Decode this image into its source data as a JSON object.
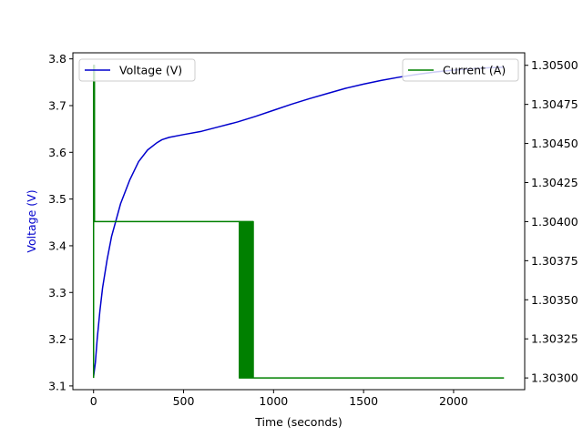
{
  "chart_data": {
    "type": "line",
    "title": "",
    "xlabel": "Time (seconds)",
    "ylabel": "Voltage (V)",
    "ylabel_right": "",
    "xlim": [
      -115,
      2395
    ],
    "ylim": [
      3.092,
      3.813
    ],
    "ylim_right": [
      1.302925,
      1.30508
    ],
    "x_ticks": [
      0,
      500,
      1000,
      1500,
      2000
    ],
    "x_tick_labels": [
      "0",
      "500",
      "1000",
      "1500",
      "2000"
    ],
    "y_ticks": [
      3.1,
      3.2,
      3.3,
      3.4,
      3.5,
      3.6,
      3.7,
      3.8
    ],
    "y_tick_labels": [
      "3.1",
      "3.2",
      "3.3",
      "3.4",
      "3.5",
      "3.6",
      "3.7",
      "3.8"
    ],
    "y_ticks_right": [
      1.303,
      1.30325,
      1.3035,
      1.30375,
      1.304,
      1.30425,
      1.3045,
      1.30475,
      1.305
    ],
    "y_tick_labels_right": [
      "1.30300",
      "1.30325",
      "1.30350",
      "1.30375",
      "1.30400",
      "1.30425",
      "1.30450",
      "1.30475",
      "1.30500"
    ],
    "grid": false,
    "series": [
      {
        "name": "Voltage (V)",
        "axis": "left",
        "color": "#0000cd",
        "legend_position": "upper-left",
        "x": [
          0,
          10,
          20,
          35,
          50,
          75,
          100,
          150,
          200,
          250,
          300,
          350,
          380,
          420,
          500,
          600,
          700,
          800,
          900,
          1000,
          1100,
          1200,
          1300,
          1400,
          1500,
          1600,
          1700,
          1800,
          1900,
          2000,
          2100,
          2200,
          2280
        ],
        "y": [
          3.12,
          3.15,
          3.2,
          3.26,
          3.31,
          3.37,
          3.42,
          3.49,
          3.54,
          3.58,
          3.605,
          3.62,
          3.627,
          3.632,
          3.638,
          3.645,
          3.655,
          3.665,
          3.677,
          3.69,
          3.703,
          3.715,
          3.726,
          3.737,
          3.746,
          3.754,
          3.761,
          3.767,
          3.772,
          3.776,
          3.779,
          3.781,
          3.782
        ]
      },
      {
        "name": "Current (A)",
        "axis": "right",
        "color": "#008000",
        "legend_position": "upper-right",
        "x": [
          0,
          0,
          5,
          5,
          810,
          810,
          812,
          812,
          815,
          815,
          818,
          818,
          821,
          821,
          824,
          824,
          827,
          827,
          830,
          830,
          833,
          833,
          836,
          836,
          839,
          839,
          842,
          842,
          845,
          845,
          848,
          848,
          851,
          851,
          854,
          854,
          857,
          857,
          860,
          860,
          863,
          863,
          866,
          866,
          869,
          869,
          872,
          872,
          875,
          875,
          878,
          878,
          881,
          881,
          884,
          884,
          887,
          887,
          2280
        ],
        "y": [
          1.303,
          1.305,
          1.305,
          1.304,
          1.304,
          1.303,
          1.303,
          1.304,
          1.304,
          1.303,
          1.303,
          1.304,
          1.304,
          1.303,
          1.303,
          1.304,
          1.304,
          1.303,
          1.303,
          1.304,
          1.304,
          1.303,
          1.303,
          1.304,
          1.304,
          1.303,
          1.303,
          1.304,
          1.304,
          1.303,
          1.303,
          1.304,
          1.304,
          1.303,
          1.303,
          1.304,
          1.304,
          1.303,
          1.303,
          1.304,
          1.304,
          1.303,
          1.303,
          1.304,
          1.304,
          1.303,
          1.303,
          1.304,
          1.304,
          1.303,
          1.303,
          1.304,
          1.304,
          1.303,
          1.303,
          1.304,
          1.304,
          1.303,
          1.303
        ]
      }
    ]
  }
}
